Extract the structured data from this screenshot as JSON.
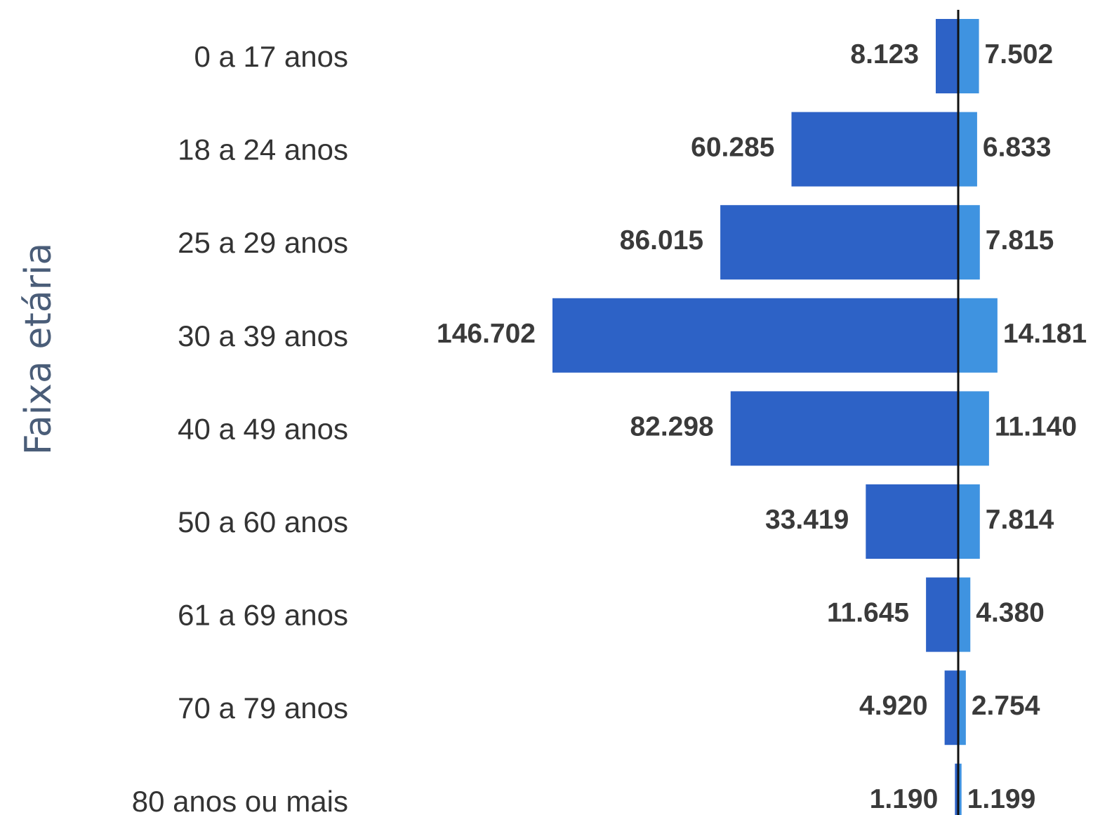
{
  "chart_data": {
    "type": "bar",
    "orientation": "horizontal",
    "layout": "population-pyramid",
    "ylabel": "Faixa etária",
    "xlabel": "",
    "categories": [
      "0 a 17 anos",
      "18 a 24 anos",
      "25 a 29 anos",
      "30 a 39 anos",
      "40 a 49 anos",
      "50 a 60 anos",
      "61 a 69 anos",
      "70 a 79 anos",
      "80 anos ou mais"
    ],
    "series": [
      {
        "side": "left",
        "color": "#2d62c6",
        "values": [
          8123,
          60285,
          86015,
          146702,
          82298,
          33419,
          11645,
          4920,
          1190
        ],
        "labels": [
          "8.123",
          "60.285",
          "86.015",
          "146.702",
          "82.298",
          "33.419",
          "11.645",
          "4.920",
          "1.190"
        ]
      },
      {
        "side": "right",
        "color": "#3f93e0",
        "values": [
          7502,
          6833,
          7815,
          14181,
          11140,
          7814,
          4380,
          2754,
          1199
        ],
        "labels": [
          "7.502",
          "6.833",
          "7.815",
          "14.181",
          "11.140",
          "7.814",
          "4.380",
          "2.754",
          "1.199"
        ]
      }
    ],
    "center_line_color": "#111111",
    "grid": false,
    "legend": "none"
  }
}
